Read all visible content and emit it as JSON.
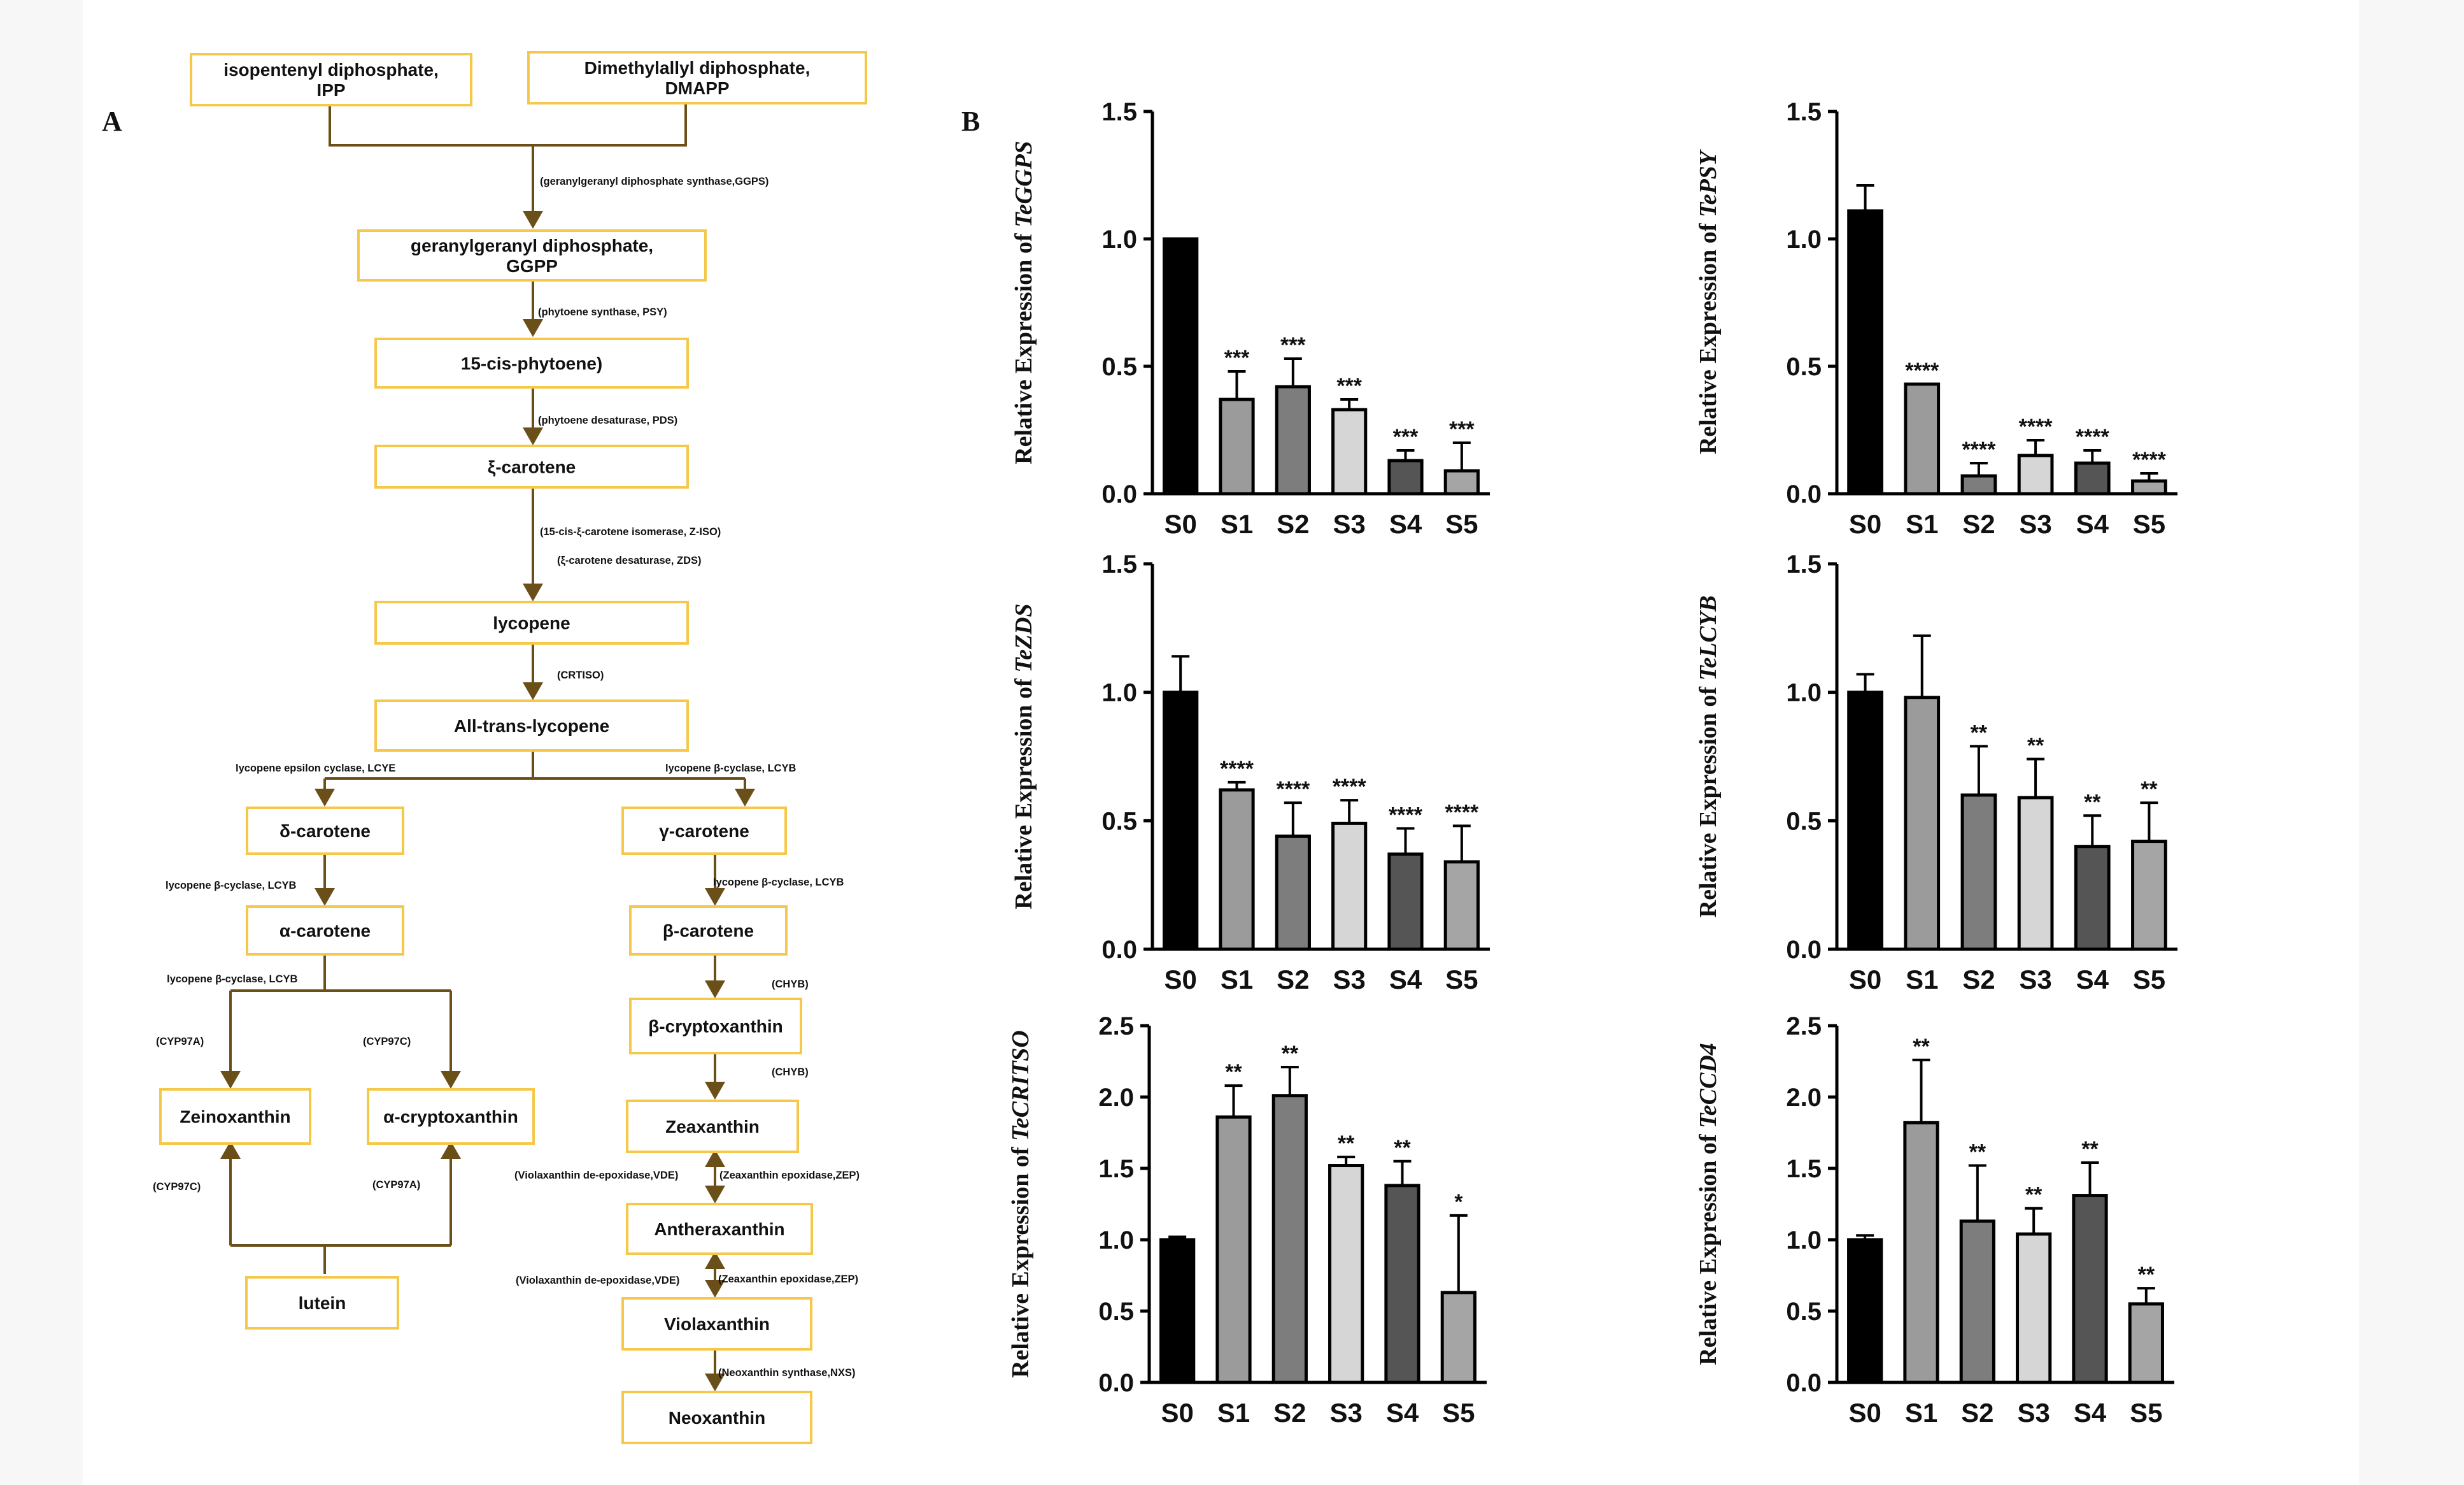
{
  "panel_labels": {
    "a": "A",
    "b": "B"
  },
  "colors": {
    "box_border": "#f5c84a",
    "arrow": "#6b4f19",
    "bar_fills": [
      "#000000",
      "#9b9b9b",
      "#7d7d7d",
      "#d6d6d6",
      "#555555",
      "#a5a5a5"
    ]
  },
  "pathway": {
    "nodes": [
      {
        "id": "ipp",
        "lines": [
          "isopentenyl diphosphate,",
          "IPP"
        ]
      },
      {
        "id": "dmapp",
        "lines": [
          "Dimethylallyl diphosphate,",
          "DMAPP"
        ]
      },
      {
        "id": "ggpp",
        "lines": [
          "geranylgeranyl diphosphate,",
          "GGPP"
        ]
      },
      {
        "id": "phytoene",
        "lines": [
          "15-cis-phytoene)"
        ]
      },
      {
        "id": "zeta",
        "lines": [
          "ξ-carotene"
        ]
      },
      {
        "id": "lycopene",
        "lines": [
          "lycopene"
        ]
      },
      {
        "id": "alltrans",
        "lines": [
          "All-trans-lycopene"
        ]
      },
      {
        "id": "delta",
        "lines": [
          "δ-carotene"
        ]
      },
      {
        "id": "gamma",
        "lines": [
          "γ-carotene"
        ]
      },
      {
        "id": "alpha",
        "lines": [
          "α-carotene"
        ]
      },
      {
        "id": "beta",
        "lines": [
          "β-carotene"
        ]
      },
      {
        "id": "betacrypto",
        "lines": [
          "β-cryptoxanthin"
        ]
      },
      {
        "id": "zeino",
        "lines": [
          "Zeinoxanthin"
        ]
      },
      {
        "id": "alphacrypto",
        "lines": [
          "α-cryptoxanthin"
        ]
      },
      {
        "id": "zeax",
        "lines": [
          "Zeaxanthin"
        ]
      },
      {
        "id": "anther",
        "lines": [
          "Antheraxanthin"
        ]
      },
      {
        "id": "lutein",
        "lines": [
          "lutein"
        ]
      },
      {
        "id": "viola",
        "lines": [
          "Violaxanthin"
        ]
      },
      {
        "id": "neo",
        "lines": [
          "Neoxanthin"
        ]
      }
    ],
    "enzymes": [
      {
        "id": "ggps",
        "text": "(geranylgeranyl diphosphate synthase,GGPS)"
      },
      {
        "id": "psy",
        "text": "(phytoene synthase,  PSY)"
      },
      {
        "id": "pds",
        "text": "(phytoene desaturase, PDS)"
      },
      {
        "id": "ziso",
        "text": "(15-cis-ξ-carotene  isomerase,  Z-ISO)"
      },
      {
        "id": "zds",
        "text": "(ξ-carotene  desaturase,  ZDS)"
      },
      {
        "id": "crtiso",
        "text": "(CRTISO)"
      },
      {
        "id": "lcye",
        "text": "lycopene epsilon cyclase, LCYE"
      },
      {
        "id": "lcyb_top",
        "text": "lycopene β-cyclase, LCYB"
      },
      {
        "id": "lcyb_left",
        "text": "lycopene β-cyclase, LCYB"
      },
      {
        "id": "lcyb_right",
        "text": "lycopene β-cyclase, LCYB"
      },
      {
        "id": "lcyb_alpha",
        "text": "lycopene β-cyclase, LCYB"
      },
      {
        "id": "chyb1",
        "text": "(CHYB)"
      },
      {
        "id": "chyb2",
        "text": "(CHYB)"
      },
      {
        "id": "cyp97a_l",
        "text": "(CYP97A)"
      },
      {
        "id": "cyp97c_r",
        "text": "(CYP97C)"
      },
      {
        "id": "cyp97c_l",
        "text": "(CYP97C)"
      },
      {
        "id": "cyp97a_r",
        "text": "(CYP97A)"
      },
      {
        "id": "vde1",
        "text": "(Violaxanthin de-epoxidase,VDE)"
      },
      {
        "id": "zep1",
        "text": "(Zeaxanthin epoxidase,ZEP)"
      },
      {
        "id": "vde2",
        "text": "(Violaxanthin de-epoxidase,VDE)"
      },
      {
        "id": "zep2",
        "text": "(Zeaxanthin epoxidase,ZEP)"
      },
      {
        "id": "nxs",
        "text": "(Neoxanthin synthase,NXS)"
      }
    ]
  },
  "chart_data": [
    {
      "type": "bar",
      "gene": "TeGGPS",
      "ylabel_prefix": "Relative Expression of ",
      "categories": [
        "S0",
        "S1",
        "S2",
        "S3",
        "S4",
        "S5"
      ],
      "values": [
        1.0,
        0.37,
        0.42,
        0.33,
        0.13,
        0.09
      ],
      "errors": [
        0.0,
        0.11,
        0.11,
        0.04,
        0.04,
        0.11
      ],
      "significance": [
        "",
        "***",
        "***",
        "***",
        "***",
        "***"
      ],
      "ylim": [
        0,
        1.5
      ],
      "yticks": [
        "0.0",
        "0.5",
        "1.0",
        "1.5"
      ]
    },
    {
      "type": "bar",
      "gene": "TePSY",
      "ylabel_prefix": "Relative Expression of ",
      "categories": [
        "S0",
        "S1",
        "S2",
        "S3",
        "S4",
        "S5"
      ],
      "values": [
        1.11,
        0.43,
        0.07,
        0.15,
        0.12,
        0.05
      ],
      "errors": [
        0.1,
        0.0,
        0.05,
        0.06,
        0.05,
        0.03
      ],
      "significance": [
        "",
        "****",
        "****",
        "****",
        "****",
        "****"
      ],
      "ylim": [
        0,
        1.5
      ],
      "yticks": [
        "0.0",
        "0.5",
        "1.0",
        "1.5"
      ]
    },
    {
      "type": "bar",
      "gene": "TeZDS",
      "ylabel_prefix": "Relative Expression of ",
      "categories": [
        "S0",
        "S1",
        "S2",
        "S3",
        "S4",
        "S5"
      ],
      "values": [
        1.0,
        0.62,
        0.44,
        0.49,
        0.37,
        0.34
      ],
      "errors": [
        0.14,
        0.03,
        0.13,
        0.09,
        0.1,
        0.14
      ],
      "significance": [
        "",
        "****",
        "****",
        "****",
        "****",
        "****"
      ],
      "ylim": [
        0,
        1.5
      ],
      "yticks": [
        "0.0",
        "0.5",
        "1.0",
        "1.5"
      ]
    },
    {
      "type": "bar",
      "gene": "TeLCYB",
      "ylabel_prefix": "Relative Expression of ",
      "categories": [
        "S0",
        "S1",
        "S2",
        "S3",
        "S4",
        "S5"
      ],
      "values": [
        1.0,
        0.98,
        0.6,
        0.59,
        0.4,
        0.42
      ],
      "errors": [
        0.07,
        0.24,
        0.19,
        0.15,
        0.12,
        0.15
      ],
      "significance": [
        "",
        "",
        "**",
        "**",
        "**",
        "**"
      ],
      "ylim": [
        0,
        1.5
      ],
      "yticks": [
        "0.0",
        "0.5",
        "1.0",
        "1.5"
      ]
    },
    {
      "type": "bar",
      "gene": "TeCRITSO",
      "ylabel_prefix": "Relative Expression of ",
      "categories": [
        "S0",
        "S1",
        "S2",
        "S3",
        "S4",
        "S5"
      ],
      "values": [
        1.0,
        1.86,
        2.01,
        1.52,
        1.38,
        0.63
      ],
      "errors": [
        0.02,
        0.22,
        0.2,
        0.06,
        0.17,
        0.54
      ],
      "significance": [
        "",
        "**",
        "**",
        "**",
        "**",
        "*"
      ],
      "ylim": [
        0,
        2.5
      ],
      "yticks": [
        "0.0",
        "0.5",
        "1.0",
        "1.5",
        "2.0",
        "2.5"
      ]
    },
    {
      "type": "bar",
      "gene": "TeCCD4",
      "ylabel_prefix": "Relative Expression of ",
      "categories": [
        "S0",
        "S1",
        "S2",
        "S3",
        "S4",
        "S5"
      ],
      "values": [
        1.0,
        1.82,
        1.13,
        1.04,
        1.31,
        0.55
      ],
      "errors": [
        0.03,
        0.44,
        0.39,
        0.18,
        0.23,
        0.11
      ],
      "significance": [
        "",
        "**",
        "**",
        "**",
        "**",
        "**"
      ],
      "ylim": [
        0,
        2.5
      ],
      "yticks": [
        "0.0",
        "0.5",
        "1.0",
        "1.5",
        "2.0",
        "2.5"
      ]
    }
  ]
}
